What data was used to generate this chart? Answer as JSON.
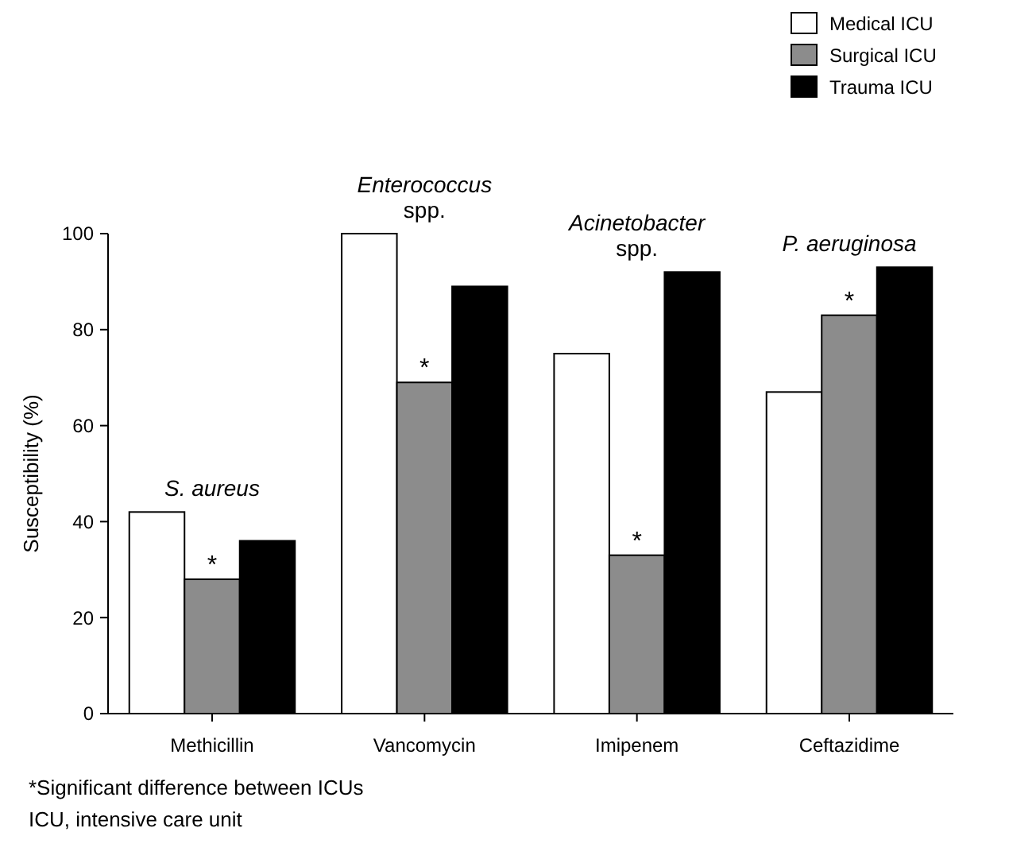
{
  "chart_data": {
    "type": "bar",
    "ylabel": "Susceptibility (%)",
    "categories": [
      "Methicillin",
      "Vancomycin",
      "Imipenem",
      "Ceftazidime"
    ],
    "series": [
      {
        "name": "Medical ICU",
        "color": "#ffffff",
        "values": [
          42,
          100,
          75,
          67
        ]
      },
      {
        "name": "Surgical ICU",
        "color": "#8c8c8c",
        "values": [
          28,
          69,
          33,
          83
        ]
      },
      {
        "name": "Trauma ICU",
        "color": "#000000",
        "values": [
          36,
          89,
          92,
          93
        ]
      }
    ],
    "ylim": [
      0,
      100
    ],
    "yticks": [
      0,
      20,
      40,
      60,
      80,
      100
    ],
    "grid": false,
    "legend": "top right",
    "annotations": [
      "S. aureus",
      "Enterococcus\nspp.",
      "Acinetobacter\nspp.",
      "P. aeruginosa",
      {
        "text": "*",
        "x": "Methicillin",
        "y": 28
      },
      {
        "text": "*",
        "x": "Vancomycin",
        "y": 69
      },
      {
        "text": "*",
        "x": "Imipenem",
        "y": 33
      },
      {
        "text": "*",
        "x": "Ceftazidime",
        "y": 83
      },
      "*Significant difference between ICUs",
      "ICU, intensive care unit"
    ]
  }
}
